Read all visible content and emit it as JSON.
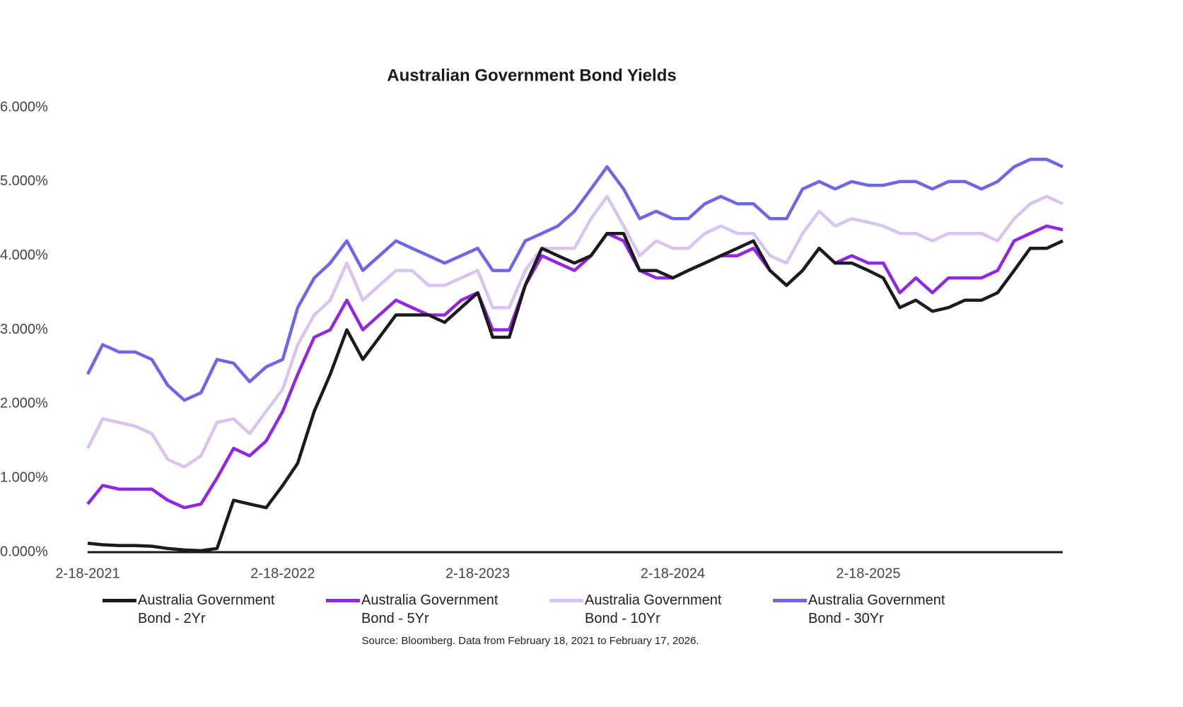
{
  "chart_data": {
    "type": "line",
    "title": "Australian Government Bond Yields",
    "note": "Source: Bloomberg. Data from February 18, 2021 to February 17, 2026.",
    "x": [
      "2021-02-18",
      "2021-03-18",
      "2021-04-18",
      "2021-05-18",
      "2021-06-18",
      "2021-07-18",
      "2021-08-18",
      "2021-09-18",
      "2021-10-18",
      "2021-11-18",
      "2021-12-18",
      "2022-01-18",
      "2022-02-18",
      "2022-03-18",
      "2022-04-18",
      "2022-05-18",
      "2022-06-18",
      "2022-07-18",
      "2022-08-18",
      "2022-09-18",
      "2022-10-18",
      "2022-11-18",
      "2022-12-18",
      "2023-01-18",
      "2023-02-18",
      "2023-03-18",
      "2023-04-18",
      "2023-05-18",
      "2023-06-18",
      "2023-07-18",
      "2023-08-18",
      "2023-09-18",
      "2023-10-18",
      "2023-11-18",
      "2023-12-18",
      "2024-01-18",
      "2024-02-18",
      "2024-03-18",
      "2024-04-18",
      "2024-05-18",
      "2024-06-18",
      "2024-07-18",
      "2024-08-18",
      "2024-09-18",
      "2024-10-18",
      "2024-11-18",
      "2024-12-18",
      "2025-01-18",
      "2025-02-18",
      "2025-03-18",
      "2025-04-18",
      "2025-05-18",
      "2025-06-18",
      "2025-07-18",
      "2025-08-18",
      "2025-09-18",
      "2025-10-18",
      "2025-11-18",
      "2025-12-18",
      "2026-01-18",
      "2026-02-17"
    ],
    "series": [
      {
        "name": "Australia Government Bond - 2Yr",
        "color": "#1c1a1f",
        "values": [
          0.12,
          0.1,
          0.09,
          0.09,
          0.08,
          0.05,
          0.03,
          0.02,
          0.05,
          0.7,
          0.65,
          0.6,
          0.9,
          1.2,
          1.9,
          2.4,
          3.0,
          2.6,
          2.9,
          3.2,
          3.2,
          3.2,
          3.1,
          3.3,
          3.5,
          2.9,
          2.9,
          3.6,
          4.1,
          4.0,
          3.9,
          4.0,
          4.3,
          4.3,
          3.8,
          3.8,
          3.7,
          3.8,
          3.9,
          4.0,
          4.1,
          4.2,
          3.8,
          3.6,
          3.8,
          4.1,
          3.9,
          3.9,
          3.8,
          3.7,
          3.3,
          3.4,
          3.25,
          3.3,
          3.4,
          3.4,
          3.5,
          3.8,
          4.1,
          4.1,
          4.2
        ]
      },
      {
        "name": "Australia Government Bond - 5Yr",
        "color": "#9126e3",
        "values": [
          0.65,
          0.9,
          0.85,
          0.85,
          0.85,
          0.7,
          0.6,
          0.65,
          1.0,
          1.4,
          1.3,
          1.5,
          1.9,
          2.4,
          2.9,
          3.0,
          3.4,
          3.0,
          3.2,
          3.4,
          3.3,
          3.2,
          3.2,
          3.4,
          3.5,
          3.0,
          3.0,
          3.6,
          4.0,
          3.9,
          3.8,
          4.0,
          4.3,
          4.2,
          3.8,
          3.7,
          3.7,
          3.8,
          3.9,
          4.0,
          4.0,
          4.1,
          3.8,
          3.6,
          3.8,
          4.1,
          3.9,
          4.0,
          3.9,
          3.9,
          3.5,
          3.7,
          3.5,
          3.7,
          3.7,
          3.7,
          3.8,
          4.2,
          4.3,
          4.4,
          4.35
        ]
      },
      {
        "name": "Australia Government Bond - 10Yr",
        "color": "#d9c4f1",
        "values": [
          1.4,
          1.8,
          1.75,
          1.7,
          1.6,
          1.25,
          1.15,
          1.3,
          1.75,
          1.8,
          1.6,
          1.9,
          2.2,
          2.8,
          3.2,
          3.4,
          3.9,
          3.4,
          3.6,
          3.8,
          3.8,
          3.6,
          3.6,
          3.7,
          3.8,
          3.3,
          3.3,
          3.8,
          4.1,
          4.1,
          4.1,
          4.5,
          4.8,
          4.4,
          4.0,
          4.2,
          4.1,
          4.1,
          4.3,
          4.4,
          4.3,
          4.3,
          4.0,
          3.9,
          4.3,
          4.6,
          4.4,
          4.5,
          4.45,
          4.4,
          4.3,
          4.3,
          4.2,
          4.3,
          4.3,
          4.3,
          4.2,
          4.5,
          4.7,
          4.8,
          4.7
        ]
      },
      {
        "name": "Australia Government Bond - 30Yr",
        "color": "#6e66e8",
        "values": [
          2.4,
          2.8,
          2.7,
          2.7,
          2.6,
          2.25,
          2.05,
          2.15,
          2.6,
          2.55,
          2.3,
          2.5,
          2.6,
          3.3,
          3.7,
          3.9,
          4.2,
          3.8,
          4.0,
          4.2,
          4.1,
          4.0,
          3.9,
          4.0,
          4.1,
          3.8,
          3.8,
          4.2,
          4.3,
          4.4,
          4.6,
          4.9,
          5.2,
          4.9,
          4.5,
          4.6,
          4.5,
          4.5,
          4.7,
          4.8,
          4.7,
          4.7,
          4.5,
          4.5,
          4.9,
          5.0,
          4.9,
          5.0,
          4.95,
          4.95,
          5.0,
          5.0,
          4.9,
          5.0,
          5.0,
          4.9,
          5.0,
          5.2,
          5.3,
          5.3,
          5.2
        ]
      }
    ],
    "xlim": [
      "2021-02-18",
      "2026-02-17"
    ],
    "xticks": [
      {
        "value": "2021-02-18",
        "label": "2-18-2021"
      },
      {
        "value": "2022-02-18",
        "label": "2-18-2022"
      },
      {
        "value": "2023-02-18",
        "label": "2-18-2023"
      },
      {
        "value": "2024-02-18",
        "label": "2-18-2024"
      },
      {
        "value": "2025-02-18",
        "label": "2-18-2025"
      }
    ],
    "ylim": [
      0,
      6
    ],
    "yticks": [
      {
        "value": 0,
        "label": "0.000%"
      },
      {
        "value": 1,
        "label": "1.000%"
      },
      {
        "value": 2,
        "label": "2.000%"
      },
      {
        "value": 3,
        "label": "3.000%"
      },
      {
        "value": 4,
        "label": "4.000%"
      },
      {
        "value": 5,
        "label": "5.000%"
      },
      {
        "value": 6,
        "label": "6.000%"
      }
    ],
    "grid": false,
    "legend": "bottom"
  }
}
